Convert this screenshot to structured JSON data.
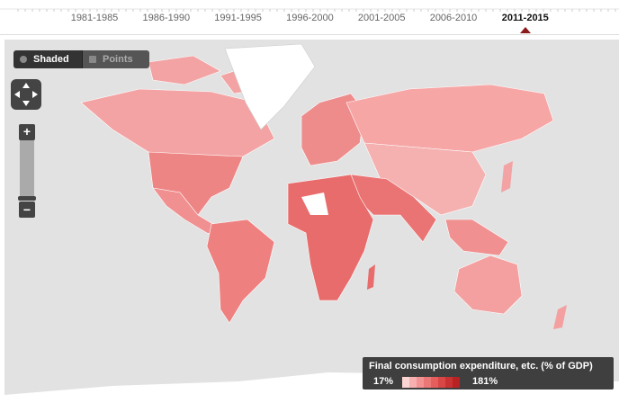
{
  "tabs": [
    "1981-1985",
    "1986-1990",
    "1991-1995",
    "1996-2000",
    "2001-2005",
    "2006-2010",
    "2011-2015"
  ],
  "selected_tab": 6,
  "modes": [
    "Shaded",
    "Points"
  ],
  "legend": {
    "title": "Final consumption expenditure, etc. (% of GDP)",
    "min": "17%",
    "max": "181%"
  }
}
